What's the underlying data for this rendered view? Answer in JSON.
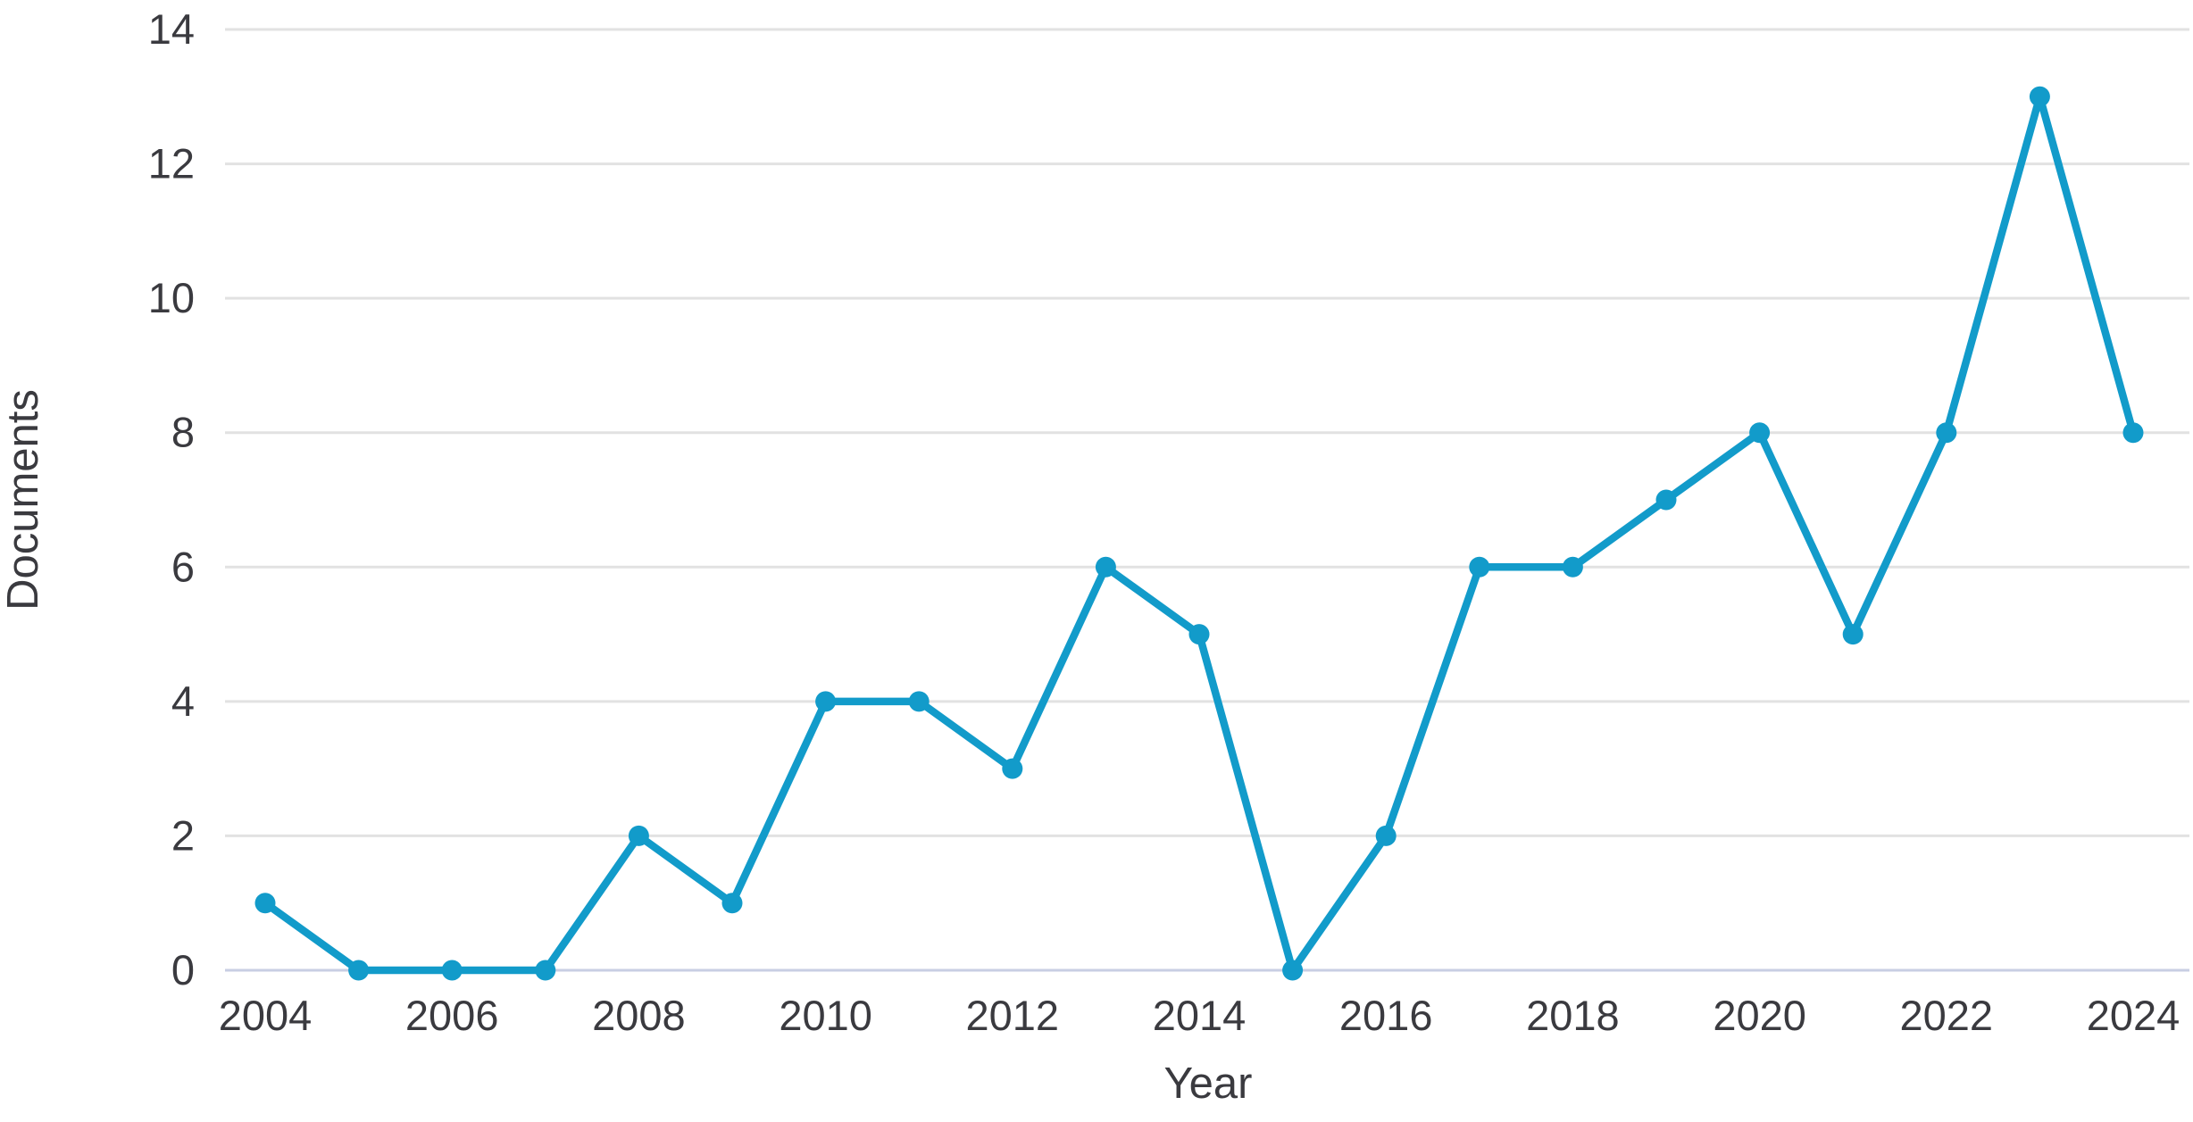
{
  "chart_data": {
    "type": "line",
    "title": "",
    "xlabel": "Year",
    "ylabel": "Documents",
    "x": [
      2004,
      2005,
      2006,
      2007,
      2008,
      2009,
      2010,
      2011,
      2012,
      2013,
      2014,
      2015,
      2016,
      2017,
      2018,
      2019,
      2020,
      2021,
      2022,
      2023,
      2024
    ],
    "values": [
      1,
      0,
      0,
      0,
      2,
      1,
      4,
      4,
      3,
      6,
      5,
      0,
      2,
      6,
      6,
      7,
      8,
      5,
      8,
      13,
      8
    ],
    "series_name": "Documents",
    "ylim": [
      0,
      14
    ],
    "ytick_step": 2,
    "yticks": [
      0,
      2,
      4,
      6,
      8,
      10,
      12,
      14
    ],
    "xtick_labels": [
      "2004",
      "2006",
      "2008",
      "2010",
      "2012",
      "2014",
      "2016",
      "2018",
      "2020",
      "2022",
      "2024"
    ],
    "grid": "horizontal",
    "legend": "none",
    "marker": "circle"
  },
  "colors": {
    "line": "#129bca",
    "marker": "#129bca",
    "gridline": "#e2e2e2",
    "baseline": "#c8cee3",
    "text": "#3a3a3f",
    "background": "#ffffff"
  }
}
